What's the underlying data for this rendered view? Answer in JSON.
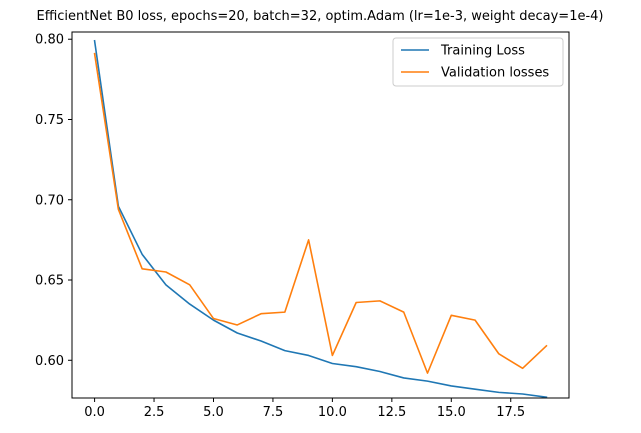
{
  "chart_data": {
    "type": "line",
    "title": "EfficientNet B0 loss, epochs=20, batch=32, optim.Adam (lr=1e-3, weight decay=1e-4)",
    "xlabel": "",
    "ylabel": "",
    "x": [
      0,
      1,
      2,
      3,
      4,
      5,
      6,
      7,
      8,
      9,
      10,
      11,
      12,
      13,
      14,
      15,
      16,
      17,
      18,
      19
    ],
    "xlim": [
      -0.95,
      19.95
    ],
    "ylim": [
      0.5765,
      0.8045
    ],
    "xticks": [
      0.0,
      2.5,
      5.0,
      7.5,
      10.0,
      12.5,
      15.0,
      17.5
    ],
    "xtick_labels": [
      "0.0",
      "2.5",
      "5.0",
      "7.5",
      "10.0",
      "12.5",
      "15.0",
      "17.5"
    ],
    "yticks": [
      0.6,
      0.65,
      0.7,
      0.75,
      0.8
    ],
    "ytick_labels": [
      "0.60",
      "0.65",
      "0.70",
      "0.75",
      "0.80"
    ],
    "grid": false,
    "legend_position": "top-right",
    "series": [
      {
        "name": "Training Loss",
        "color": "#1f77b4",
        "values": [
          0.799,
          0.696,
          0.666,
          0.647,
          0.635,
          0.625,
          0.617,
          0.612,
          0.606,
          0.603,
          0.598,
          0.596,
          0.593,
          0.589,
          0.587,
          0.584,
          0.582,
          0.58,
          0.579,
          0.577
        ]
      },
      {
        "name": "Validation losses",
        "color": "#ff7f0e",
        "values": [
          0.791,
          0.694,
          0.657,
          0.655,
          0.647,
          0.626,
          0.622,
          0.629,
          0.63,
          0.675,
          0.603,
          0.636,
          0.637,
          0.63,
          0.592,
          0.628,
          0.625,
          0.604,
          0.595,
          0.609
        ]
      }
    ]
  }
}
